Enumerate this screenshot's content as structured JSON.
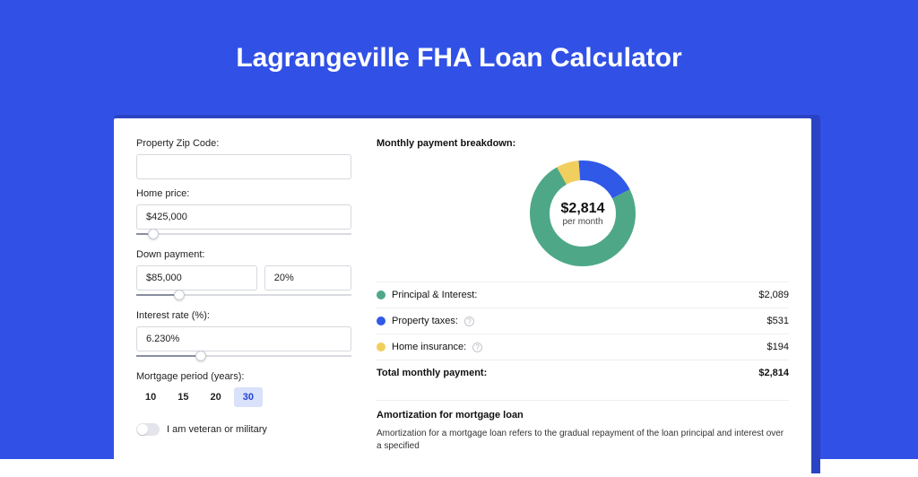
{
  "colors": {
    "page_bg": "#3151e6",
    "card_shadow": "#2a43c4",
    "principal": "#4ea887",
    "taxes": "#3059e7",
    "insurance": "#f0cf5e",
    "period_selected_bg": "#d9e1fb",
    "period_selected_text": "#2242d6"
  },
  "title": "Lagrangeville FHA Loan Calculator",
  "form": {
    "zip_label": "Property Zip Code:",
    "zip_value": "",
    "home_label": "Home price:",
    "home_value": "$425,000",
    "home_slider_pct": 8,
    "down_label": "Down payment:",
    "down_value": "$85,000",
    "down_pct": "20%",
    "down_slider_pct": 20,
    "rate_label": "Interest rate (%):",
    "rate_value": "6.230%",
    "rate_slider_pct": 30,
    "period_label": "Mortgage period (years):",
    "periods": [
      "10",
      "15",
      "20",
      "30"
    ],
    "period_selected_index": 3,
    "veteran_label": "I am veteran or military"
  },
  "breakdown": {
    "title": "Monthly payment breakdown:",
    "total_display": "$2,814",
    "total_sub": "per month",
    "items": [
      {
        "label": "Principal & Interest:",
        "value": "$2,089",
        "value_num": 2089,
        "color": "#4ea887",
        "has_info": false
      },
      {
        "label": "Property taxes:",
        "value": "$531",
        "value_num": 531,
        "color": "#3059e7",
        "has_info": true
      },
      {
        "label": "Home insurance:",
        "value": "$194",
        "value_num": 194,
        "color": "#f0cf5e",
        "has_info": true
      }
    ],
    "total_row_label": "Total monthly payment:",
    "total_row_value": "$2,814",
    "total_num": 2814
  },
  "amort": {
    "title": "Amortization for mortgage loan",
    "body": "Amortization for a mortgage loan refers to the gradual repayment of the loan principal and interest over a specified"
  },
  "donut": {
    "radius": 48,
    "stroke": 22,
    "circumference": 301.59
  }
}
